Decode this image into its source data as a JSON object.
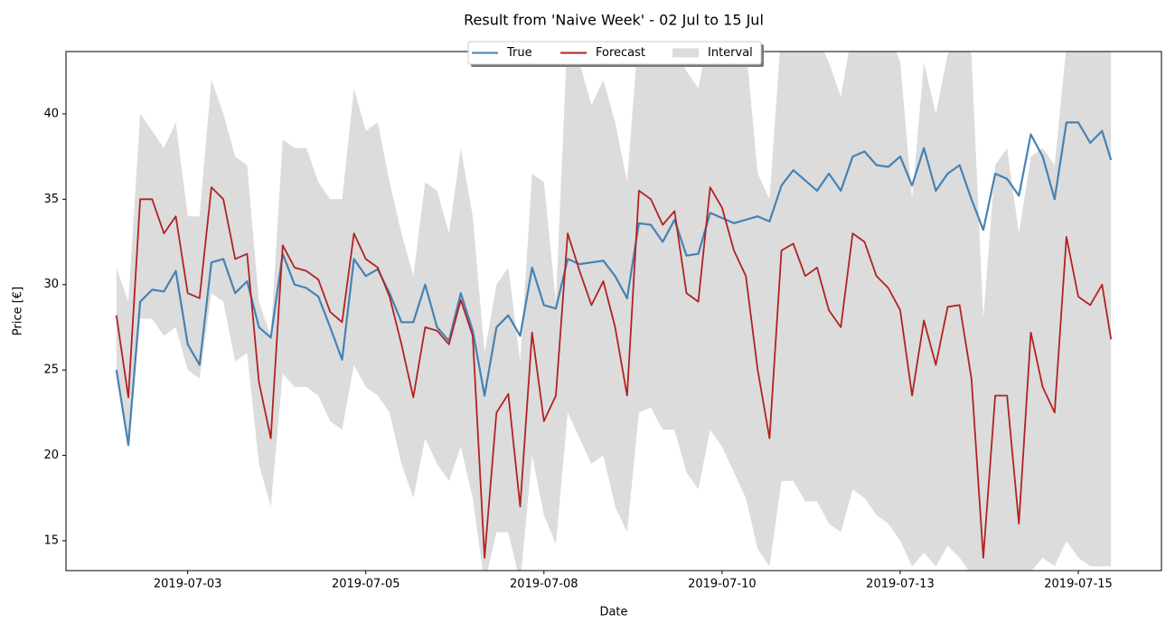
{
  "chart_data": {
    "type": "line",
    "title": "Result from 'Naive Week' - 02 Jul to 15 Jul",
    "x_label": "Date",
    "y_label": "Price [€]",
    "x": [
      "2019-07-02 00:00",
      "2019-07-02 04:00",
      "2019-07-02 08:00",
      "2019-07-02 12:00",
      "2019-07-02 16:00",
      "2019-07-02 20:00",
      "2019-07-03 00:00",
      "2019-07-03 04:00",
      "2019-07-03 08:00",
      "2019-07-03 12:00",
      "2019-07-03 16:00",
      "2019-07-03 20:00",
      "2019-07-04 00:00",
      "2019-07-04 04:00",
      "2019-07-04 08:00",
      "2019-07-04 12:00",
      "2019-07-04 16:00",
      "2019-07-04 20:00",
      "2019-07-05 00:00",
      "2019-07-05 04:00",
      "2019-07-05 08:00",
      "2019-07-05 12:00",
      "2019-07-05 16:00",
      "2019-07-05 20:00",
      "2019-07-06 00:00",
      "2019-07-06 04:00",
      "2019-07-06 08:00",
      "2019-07-06 12:00",
      "2019-07-06 16:00",
      "2019-07-06 20:00",
      "2019-07-07 00:00",
      "2019-07-07 04:00",
      "2019-07-07 08:00",
      "2019-07-07 12:00",
      "2019-07-07 16:00",
      "2019-07-07 20:00",
      "2019-07-08 00:00",
      "2019-07-08 04:00",
      "2019-07-08 08:00",
      "2019-07-08 12:00",
      "2019-07-08 16:00",
      "2019-07-08 20:00",
      "2019-07-09 00:00",
      "2019-07-09 04:00",
      "2019-07-09 08:00",
      "2019-07-09 12:00",
      "2019-07-09 16:00",
      "2019-07-09 20:00",
      "2019-07-10 00:00",
      "2019-07-10 04:00",
      "2019-07-10 08:00",
      "2019-07-10 12:00",
      "2019-07-10 16:00",
      "2019-07-10 20:00",
      "2019-07-11 00:00",
      "2019-07-11 04:00",
      "2019-07-11 08:00",
      "2019-07-11 12:00",
      "2019-07-11 16:00",
      "2019-07-11 20:00",
      "2019-07-12 00:00",
      "2019-07-12 04:00",
      "2019-07-12 08:00",
      "2019-07-12 12:00",
      "2019-07-12 16:00",
      "2019-07-12 20:00",
      "2019-07-13 00:00",
      "2019-07-13 04:00",
      "2019-07-13 08:00",
      "2019-07-13 12:00",
      "2019-07-13 16:00",
      "2019-07-13 20:00",
      "2019-07-14 00:00",
      "2019-07-14 04:00",
      "2019-07-14 08:00",
      "2019-07-14 12:00",
      "2019-07-14 16:00",
      "2019-07-14 20:00",
      "2019-07-15 00:00",
      "2019-07-15 04:00",
      "2019-07-15 08:00",
      "2019-07-15 12:00",
      "2019-07-15 16:00",
      "2019-07-15 20:00",
      "2019-07-15 23:00"
    ],
    "series": [
      {
        "name": "True",
        "color": "#4682b4",
        "values": [
          25.0,
          20.6,
          29.0,
          29.7,
          29.6,
          30.8,
          26.5,
          25.3,
          31.3,
          31.5,
          29.5,
          30.2,
          27.5,
          26.9,
          31.8,
          30.0,
          29.8,
          29.3,
          27.5,
          25.6,
          31.5,
          30.5,
          30.9,
          29.5,
          27.8,
          27.8,
          30.0,
          27.5,
          26.7,
          29.5,
          27.3,
          23.5,
          27.5,
          28.2,
          27.0,
          31.0,
          28.8,
          28.6,
          31.5,
          31.2,
          31.3,
          31.4,
          30.5,
          29.2,
          33.6,
          33.5,
          32.5,
          33.8,
          31.7,
          31.8,
          34.2,
          33.9,
          33.6,
          33.8,
          34.0,
          33.7,
          35.8,
          36.7,
          36.1,
          35.5,
          36.5,
          35.5,
          37.5,
          37.8,
          37.0,
          36.9,
          37.5,
          35.8,
          38.0,
          35.5,
          36.5,
          37.0,
          35.0,
          33.2,
          36.5,
          36.2,
          35.2,
          38.8,
          37.5,
          35.0,
          39.5,
          39.5,
          38.3,
          39.0,
          37.3
        ]
      },
      {
        "name": "Forecast",
        "color": "#b22222",
        "values": [
          28.2,
          23.4,
          35.0,
          35.0,
          33.0,
          34.0,
          29.5,
          29.2,
          35.7,
          35.0,
          31.5,
          31.8,
          24.3,
          21.0,
          32.3,
          31.0,
          30.8,
          30.3,
          28.4,
          27.8,
          33.0,
          31.5,
          31.0,
          29.3,
          26.5,
          23.4,
          27.5,
          27.3,
          26.5,
          29.1,
          27.0,
          14.0,
          22.5,
          23.6,
          17.0,
          27.2,
          22.0,
          23.5,
          33.0,
          30.8,
          28.8,
          30.2,
          27.5,
          23.5,
          35.5,
          35.0,
          33.5,
          34.3,
          29.5,
          29.0,
          35.7,
          34.5,
          32.0,
          30.5,
          25.0,
          21.0,
          32.0,
          32.4,
          30.5,
          31.0,
          28.5,
          27.5,
          33.0,
          32.5,
          30.5,
          29.8,
          28.5,
          23.5,
          27.9,
          25.3,
          28.7,
          28.8,
          24.5,
          14.0,
          23.5,
          23.5,
          16.0,
          27.2,
          24.0,
          22.5,
          32.8,
          29.3,
          28.8,
          30.0,
          26.8
        ]
      }
    ],
    "interval": {
      "name": "Interval",
      "color": "#dcdcdc",
      "upper": [
        31,
        29,
        40,
        39,
        38,
        39.5,
        34,
        34,
        42,
        40,
        37.5,
        37,
        29,
        27,
        38.5,
        38,
        38,
        36,
        35,
        35,
        41.5,
        39,
        39.5,
        36,
        33,
        30.5,
        36,
        35.5,
        33,
        38,
        34,
        26,
        30,
        31,
        25.5,
        36.5,
        36,
        29,
        45,
        43,
        40.5,
        42,
        39.5,
        36,
        45,
        45,
        45,
        44,
        42.5,
        41.5,
        45,
        45,
        45,
        44,
        36.5,
        35,
        45,
        45,
        45,
        44.5,
        43,
        41,
        45,
        45,
        45,
        45,
        43,
        35,
        43,
        40,
        43.5,
        44.5,
        43.5,
        28,
        37,
        38,
        33,
        37.5,
        38,
        37,
        44,
        44,
        44,
        44,
        44
      ],
      "lower": [
        25,
        20.5,
        28,
        28,
        27,
        27.5,
        25,
        24.5,
        29.5,
        29,
        25.5,
        26,
        19.5,
        17,
        24.8,
        24,
        24,
        23.5,
        22,
        21.5,
        25.3,
        24,
        23.5,
        22.5,
        19.5,
        17.5,
        21,
        19.5,
        18.5,
        20.5,
        17.5,
        12.5,
        15.5,
        15.5,
        12.5,
        20,
        16.5,
        14.8,
        22.5,
        21,
        19.5,
        20,
        17,
        15.5,
        22.5,
        22.8,
        21.5,
        21.5,
        19,
        18,
        21.5,
        20.5,
        19,
        17.5,
        14.5,
        13.5,
        18.5,
        18.5,
        17.3,
        17.3,
        16,
        15.5,
        18,
        17.5,
        16.5,
        16,
        15,
        13.5,
        14.3,
        13.5,
        14.7,
        14,
        13,
        13,
        13.2,
        13.2,
        13.2,
        13.2,
        14,
        13.5,
        15,
        14,
        13.5,
        13.5,
        13.5
      ]
    },
    "xlim": [
      "2019-07-01 07:00",
      "2019-07-16 16:00"
    ],
    "xticks": [
      {
        "value": "2019-07-03 00:00",
        "label": "2019-07-03"
      },
      {
        "value": "2019-07-05 12:00",
        "label": "2019-07-05"
      },
      {
        "value": "2019-07-08 00:00",
        "label": "2019-07-08"
      },
      {
        "value": "2019-07-10 12:00",
        "label": "2019-07-10"
      },
      {
        "value": "2019-07-13 00:00",
        "label": "2019-07-13"
      },
      {
        "value": "2019-07-15 12:00",
        "label": "2019-07-15"
      }
    ],
    "ylim": [
      13.25,
      43.65
    ],
    "yticks": [
      15,
      20,
      25,
      30,
      35,
      40
    ],
    "legend": "top"
  }
}
